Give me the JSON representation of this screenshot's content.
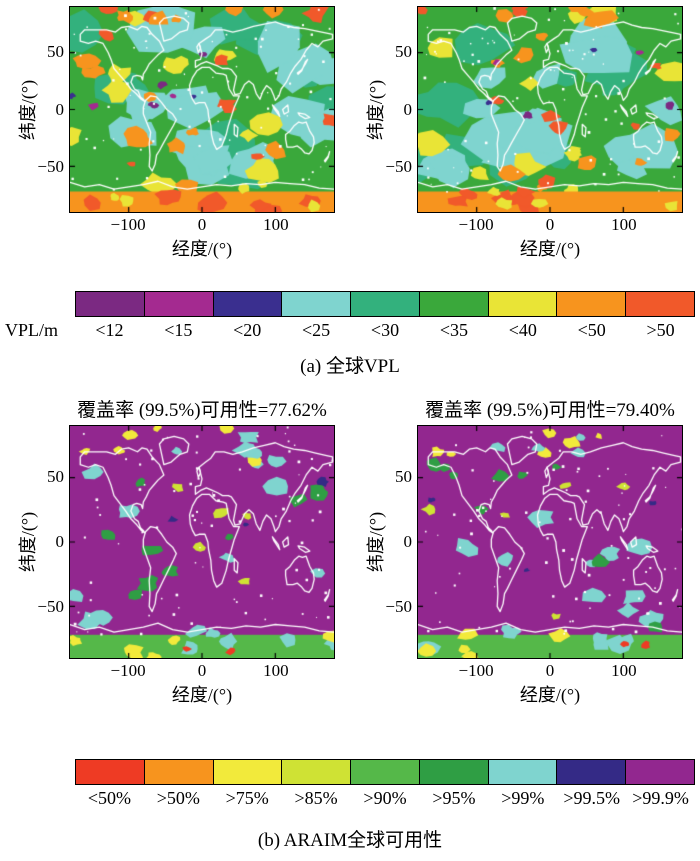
{
  "figure": {
    "axes": {
      "xlabel": "经度/(°)",
      "ylabel": "纬度/(°)",
      "x_ticks": [
        "−100",
        "0",
        "100"
      ],
      "y_ticks": [
        "50",
        "0",
        "−50"
      ]
    },
    "colorbar_vpl": {
      "label": "VPL/m",
      "categories": [
        "<12",
        "<15",
        "<20",
        "<25",
        "<30",
        "<35",
        "<40",
        "<50",
        ">50"
      ],
      "colors": [
        "#7b2982",
        "#a42a90",
        "#3a2f8f",
        "#7fd4cf",
        "#33b17d",
        "#3aa83b",
        "#e9e436",
        "#f7941e",
        "#f1592a"
      ]
    },
    "caption_a": "(a) 全球VPL",
    "panel_titles": {
      "left": "覆盖率 (99.5%)可用性=77.62%",
      "right": "覆盖率 (99.5%)可用性=79.40%"
    },
    "colorbar_availability": {
      "categories": [
        "<50%",
        ">50%",
        ">75%",
        ">85%",
        ">90%",
        ">95%",
        ">99%",
        ">99.5%",
        ">99.9%"
      ],
      "colors": [
        "#ee3b24",
        "#f7941e",
        "#f2ea3b",
        "#cfe234",
        "#55b849",
        "#2f9e44",
        "#7fd4cf",
        "#342a86",
        "#92278f"
      ]
    },
    "caption_b": "(b) ARAIM全球可用性"
  },
  "chart_data": [
    {
      "type": "heatmap",
      "subtype": "filled-contour world map, 2 panels side by side",
      "title": "(a) 全球VPL",
      "panels": [
        {
          "name": "top-left"
        },
        {
          "name": "top-right"
        }
      ],
      "xlabel": "经度/(°)",
      "ylabel": "纬度/(°)",
      "x_ticks": [
        -100,
        0,
        100
      ],
      "y_ticks": [
        50,
        0,
        -50
      ],
      "xlim": [
        -180,
        180
      ],
      "ylim": [
        -90,
        90
      ],
      "colorbar": {
        "label": "VPL/m",
        "orientation": "horizontal",
        "categories": [
          "<12",
          "<15",
          "<20",
          "<25",
          "<30",
          "<35",
          "<40",
          "<50",
          ">50"
        ],
        "colors": [
          "#7b2982",
          "#a42a90",
          "#3a2f8f",
          "#7fd4cf",
          "#33b17d",
          "#3aa83b",
          "#e9e436",
          "#f7941e",
          "#f1592a"
        ]
      },
      "grid": false,
      "coastlines": "white outlines over colored field"
    },
    {
      "type": "heatmap",
      "subtype": "filled-contour world map, 2 panels side by side",
      "title": "(b) ARAIM全球可用性",
      "panels": [
        {
          "name": "bottom-left",
          "title": "覆盖率 (99.5%)可用性=77.62%",
          "availability_percent": 77.62
        },
        {
          "name": "bottom-right",
          "title": "覆盖率 (99.5%)可用性=79.40%",
          "availability_percent": 79.4
        }
      ],
      "xlabel": "经度/(°)",
      "ylabel": "纬度/(°)",
      "x_ticks": [
        -100,
        0,
        100
      ],
      "y_ticks": [
        50,
        0,
        -50
      ],
      "xlim": [
        -180,
        180
      ],
      "ylim": [
        -90,
        90
      ],
      "colorbar": {
        "label": "",
        "orientation": "horizontal",
        "categories": [
          "<50%",
          ">50%",
          ">75%",
          ">85%",
          ">90%",
          ">95%",
          ">99%",
          ">99.5%",
          ">99.9%"
        ],
        "colors": [
          "#ee3b24",
          "#f7941e",
          "#f2ea3b",
          "#cfe234",
          "#55b849",
          "#2f9e44",
          "#7fd4cf",
          "#342a86",
          "#92278f"
        ]
      },
      "grid": false,
      "coastlines": "white outlines over colored field (dominant color >99.9%)"
    }
  ]
}
